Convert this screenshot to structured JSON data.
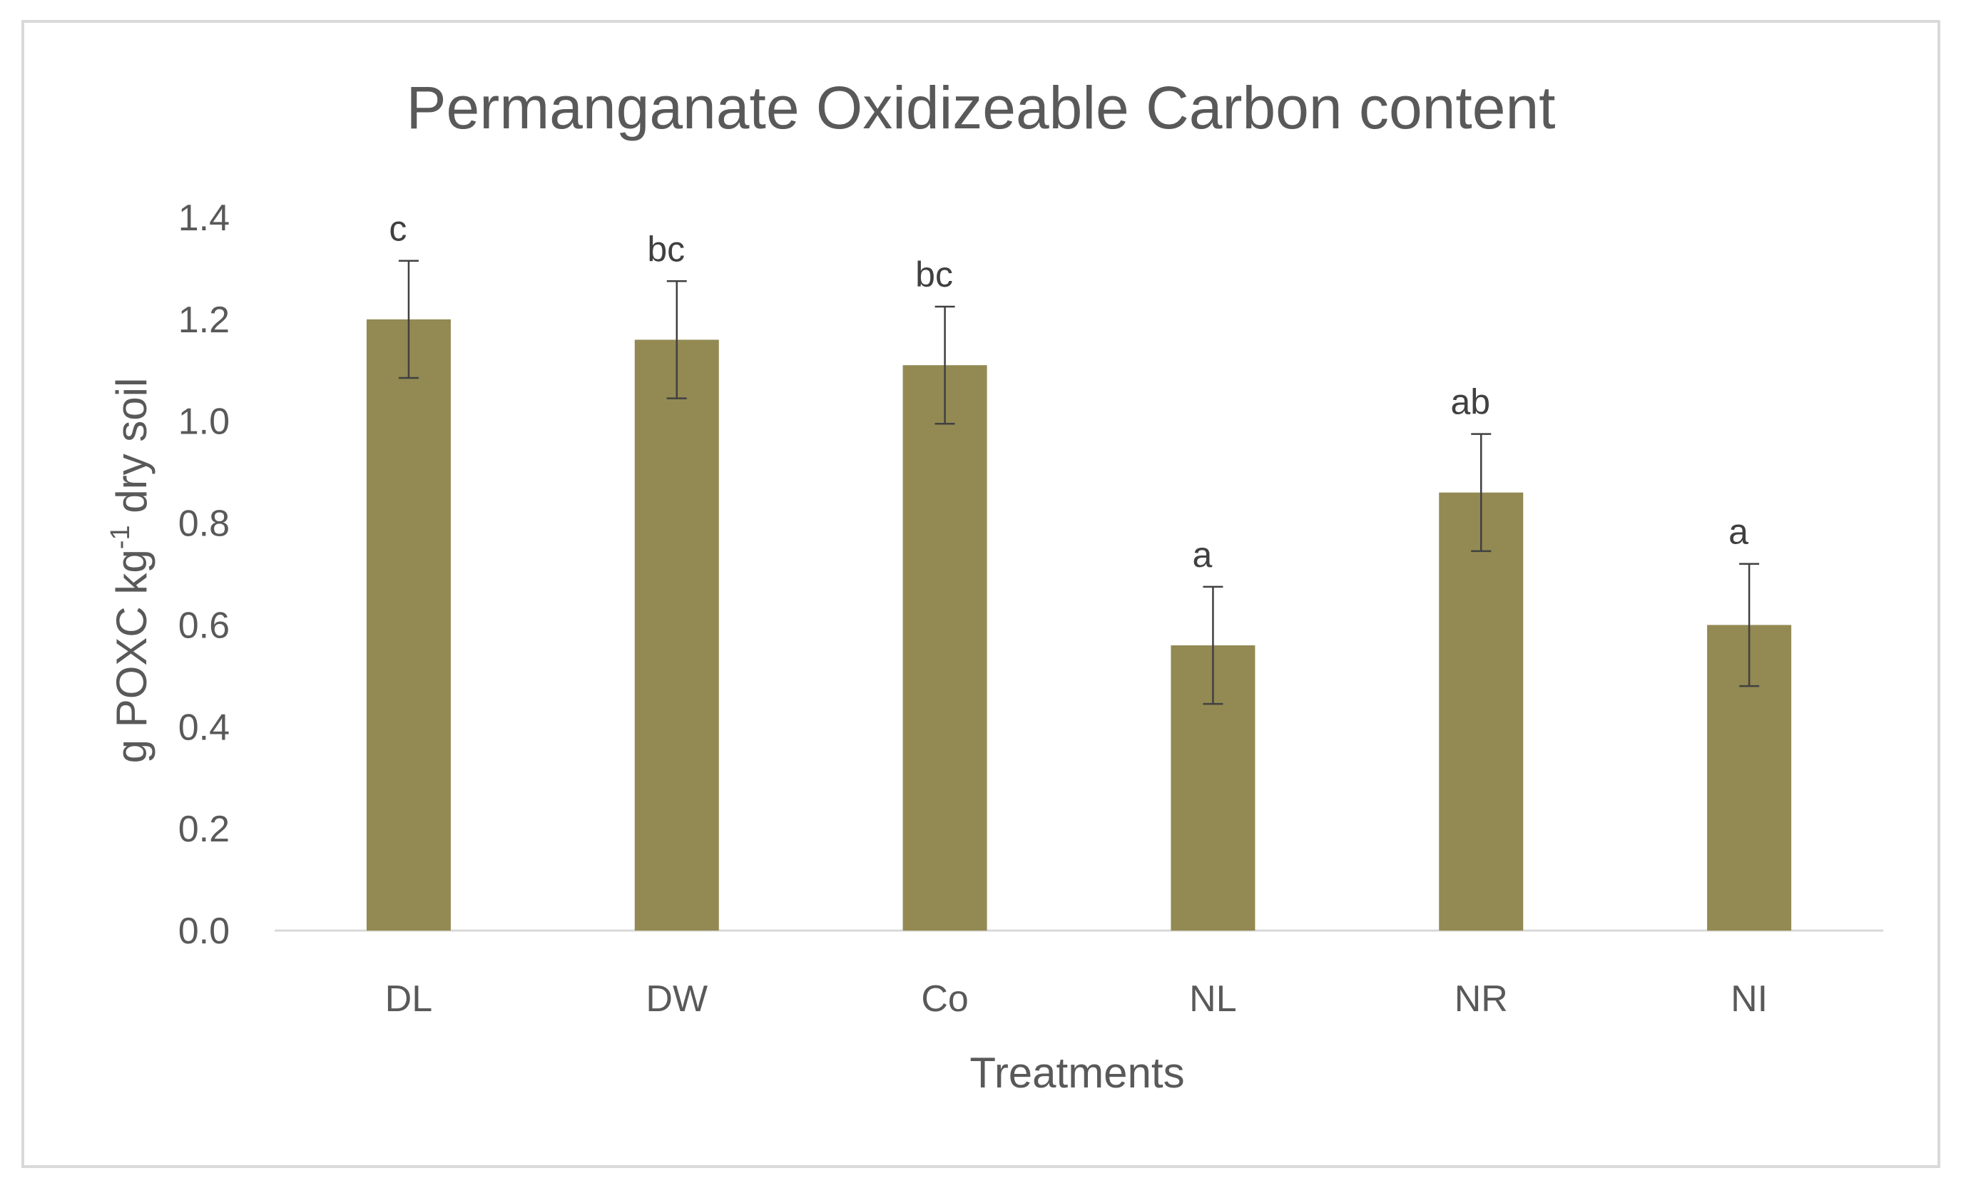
{
  "chart_data": {
    "type": "bar",
    "title": "Permanganate Oxidizeable Carbon content",
    "xlabel": "Treatments",
    "ylabel_parts": [
      "g POXC kg",
      "-1",
      " dry soil"
    ],
    "categories": [
      "DL",
      "DW",
      "Co",
      "NL",
      "NR",
      "NI"
    ],
    "values": [
      1.2,
      1.16,
      1.11,
      0.56,
      0.86,
      0.6
    ],
    "errors": [
      0.115,
      0.115,
      0.115,
      0.115,
      0.115,
      0.12
    ],
    "significance_letters": [
      "c",
      "bc",
      "bc",
      "a",
      "ab",
      "a"
    ],
    "ylim": [
      0,
      1.4
    ],
    "yticks": [
      "0.0",
      "0.2",
      "0.4",
      "0.6",
      "0.8",
      "1.0",
      "1.2",
      "1.4"
    ],
    "grid": false,
    "legend": "none",
    "bar_color": "#938953",
    "error_bar_color": "#404040",
    "axis_color": "#d9d9d9",
    "text_color": "#595959"
  }
}
